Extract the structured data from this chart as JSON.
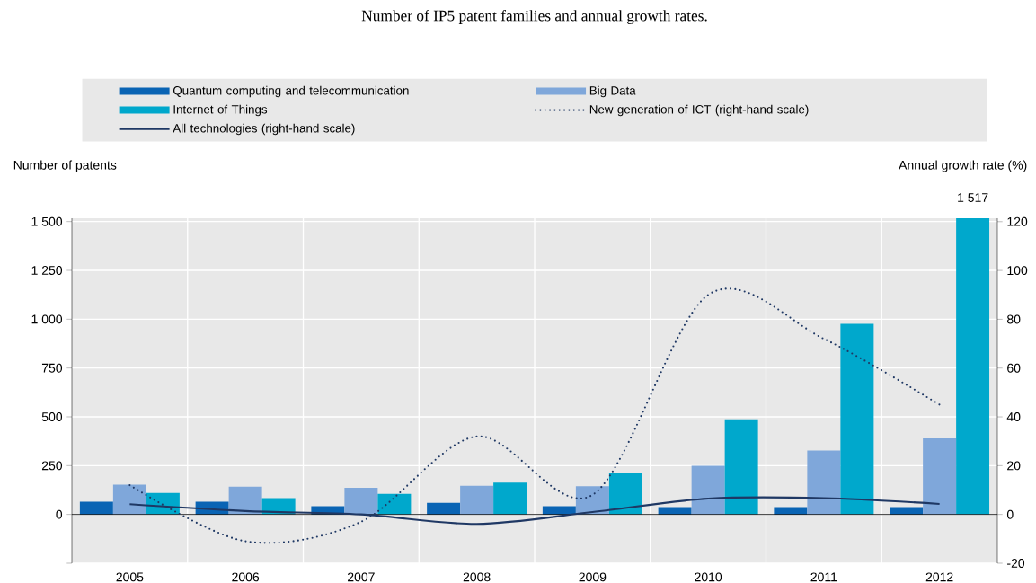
{
  "chart_data": {
    "type": "bar",
    "title": "Number of IP5 patent families and annual growth rates.",
    "ylabel": "Number of patents",
    "y2label": "Annual growth rate (%)",
    "categories": [
      "2005",
      "2006",
      "2007",
      "2008",
      "2009",
      "2010",
      "2011",
      "2012"
    ],
    "series": [
      {
        "name": "Quantum computing and telecommunication",
        "color": "#0a64b4",
        "values": [
          65,
          65,
          42,
          59,
          42,
          37,
          37,
          37
        ]
      },
      {
        "name": "Big Data",
        "color": "#7fa7da",
        "values": [
          152,
          142,
          136,
          147,
          145,
          249,
          327,
          389
        ]
      },
      {
        "name": "Internet of Things",
        "color": "#00a8cc",
        "values": [
          110,
          84,
          105,
          163,
          214,
          487,
          976,
          1517
        ],
        "value_labels": [
          null,
          null,
          null,
          null,
          null,
          null,
          null,
          "1 517"
        ]
      },
      {
        "name": "New generation of ICT (right-hand scale)",
        "type": "line",
        "axis": "y2",
        "line_style": "dotted",
        "color": "#1f3864",
        "values": [
          12,
          -11,
          -3,
          32,
          8,
          90,
          72,
          45
        ]
      },
      {
        "name": "All technologies (right-hand scale)",
        "type": "line",
        "axis": "y2",
        "line_style": "solid",
        "color": "#1f3864",
        "values": [
          4.2,
          1.4,
          0,
          -3.9,
          1,
          6.5,
          6.7,
          4.3
        ]
      }
    ],
    "ylim": [
      -250,
      1517
    ],
    "yticks": [
      {
        "value": -250,
        "label": null
      },
      0,
      250,
      500,
      750,
      {
        "value": 1000,
        "label": "1 000"
      },
      {
        "value": 1250,
        "label": "1 250"
      },
      {
        "value": 1500,
        "label": "1 500"
      }
    ],
    "y2lim": [
      -20,
      121.4
    ],
    "y2ticks": [
      -20,
      0,
      20,
      40,
      60,
      80,
      100,
      120
    ],
    "grid": true,
    "legend": "top",
    "marker": "none"
  }
}
